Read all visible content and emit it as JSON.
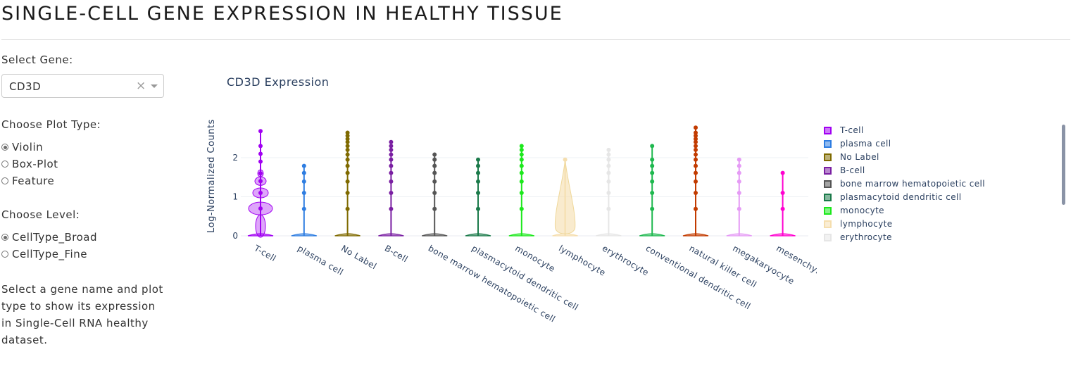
{
  "page": {
    "title": "SINGLE-CELL GENE EXPRESSION IN HEALTHY TISSUE"
  },
  "sidebar": {
    "gene_label": "Select Gene:",
    "gene_value": "CD3D",
    "clear_symbol": "×",
    "plot_type_label": "Choose Plot Type:",
    "plot_types": [
      {
        "label": "Violin",
        "selected": true
      },
      {
        "label": "Box-Plot",
        "selected": false
      },
      {
        "label": "Feature",
        "selected": false
      }
    ],
    "level_label": "Choose Level:",
    "levels": [
      {
        "label": "CellType_Broad",
        "selected": true
      },
      {
        "label": "CellType_Fine",
        "selected": false
      }
    ],
    "description": "Select a gene name and plot type to show its expression in Single-Cell RNA healthy dataset."
  },
  "chart_data": {
    "type": "violin",
    "title": "CD3D Expression",
    "ylabel": "Log-Normalized Counts",
    "xlabel": "",
    "ylim": [
      0,
      2.7
    ],
    "yticks": [
      0,
      1,
      2
    ],
    "grid": true,
    "legend_placement": "right",
    "categories": [
      "T-cell",
      "plasma cell",
      "No Label",
      "B-cell",
      "bone marrow hematopoietic cell",
      "plasmacytoid dendritic cell",
      "monocyte",
      "lymphocyte",
      "erythrocyte",
      "conventional dendritic cell",
      "natural killer cell",
      "megakaryocyte",
      "mesenchymal stem cell of the bone marrow"
    ],
    "series": [
      {
        "name": "T-cell",
        "color": "#a100f2",
        "max": 2.68,
        "points": [
          0.7,
          1.1,
          1.4,
          1.6,
          1.9,
          2.1,
          2.3,
          2.68
        ]
      },
      {
        "name": "plasma cell",
        "color": "#2e7de1",
        "max": 1.79,
        "points": [
          0.69,
          1.1,
          1.39,
          1.61,
          1.79
        ]
      },
      {
        "name": "No Label",
        "color": "#7f6a00",
        "max": 2.64,
        "points": [
          0.69,
          1.1,
          1.39,
          1.61,
          1.79,
          1.95,
          2.08,
          2.2,
          2.3,
          2.4,
          2.48,
          2.56,
          2.64
        ]
      },
      {
        "name": "B-cell",
        "color": "#7a1fa2",
        "max": 2.4,
        "points": [
          0.69,
          1.1,
          1.39,
          1.61,
          1.79,
          1.95,
          2.08,
          2.2,
          2.3,
          2.4
        ]
      },
      {
        "name": "bone marrow hematopoietic cell",
        "color": "#555555",
        "max": 2.08,
        "points": [
          0.69,
          1.1,
          1.39,
          1.61,
          1.79,
          1.95,
          2.08
        ]
      },
      {
        "name": "plasmacytoid dendritic cell",
        "color": "#1b7a4a",
        "max": 1.95,
        "points": [
          0.69,
          1.1,
          1.39,
          1.61,
          1.79,
          1.95
        ]
      },
      {
        "name": "monocyte",
        "color": "#1ce81c",
        "max": 2.3,
        "points": [
          0.69,
          1.1,
          1.39,
          1.61,
          1.79,
          1.95,
          2.08,
          2.2,
          2.3
        ]
      },
      {
        "name": "lymphocyte",
        "color": "#f5deae",
        "max": 1.95,
        "points": [
          1.95
        ]
      },
      {
        "name": "erythrocyte",
        "color": "#e6e6e6",
        "max": 2.2,
        "points": [
          0.69,
          1.1,
          1.39,
          1.61,
          1.79,
          1.95,
          2.08,
          2.2
        ]
      },
      {
        "name": "conventional dendritic cell",
        "color": "#1fb84f",
        "max": 2.3,
        "points": [
          0.69,
          1.1,
          1.39,
          1.61,
          1.79,
          1.95,
          2.3
        ]
      },
      {
        "name": "natural killer cell",
        "color": "#c23b00",
        "max": 2.77,
        "points": [
          0.69,
          1.1,
          1.39,
          1.61,
          1.79,
          1.95,
          2.08,
          2.2,
          2.3,
          2.4,
          2.48,
          2.56,
          2.64,
          2.77
        ]
      },
      {
        "name": "megakaryocyte",
        "color": "#e59bf5",
        "max": 1.95,
        "points": [
          0.69,
          1.1,
          1.39,
          1.61,
          1.79,
          1.95
        ]
      },
      {
        "name": "mesenchymal stem cell of the bone marrow",
        "color": "#ff00d0",
        "max": 1.61,
        "points": [
          0.69,
          1.1,
          1.61
        ]
      }
    ]
  },
  "legend": {
    "visible_items": [
      {
        "label": "T-cell",
        "color": "#a100f2"
      },
      {
        "label": "plasma cell",
        "color": "#2e7de1"
      },
      {
        "label": "No Label",
        "color": "#7f6a00"
      },
      {
        "label": "B-cell",
        "color": "#7a1fa2"
      },
      {
        "label": "bone marrow hematopoietic cell",
        "color": "#555555"
      },
      {
        "label": "plasmacytoid dendritic cell",
        "color": "#1b7a4a"
      },
      {
        "label": "monocyte",
        "color": "#1ce81c"
      },
      {
        "label": "lymphocyte",
        "color": "#f5deae"
      },
      {
        "label": "erythrocyte",
        "color": "#e6e6e6"
      }
    ]
  }
}
